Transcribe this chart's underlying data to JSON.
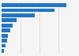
{
  "values": [
    34.0,
    28.0,
    17.5,
    8.0,
    6.0,
    4.5,
    3.5,
    2.8,
    2.0,
    1.2
  ],
  "bar_color": "#2176c7",
  "background_color": "#f5f5f5",
  "grid_color": "#d9d9d9",
  "xlim": [
    0,
    40
  ],
  "bar_height": 0.72,
  "n_bars": 10
}
